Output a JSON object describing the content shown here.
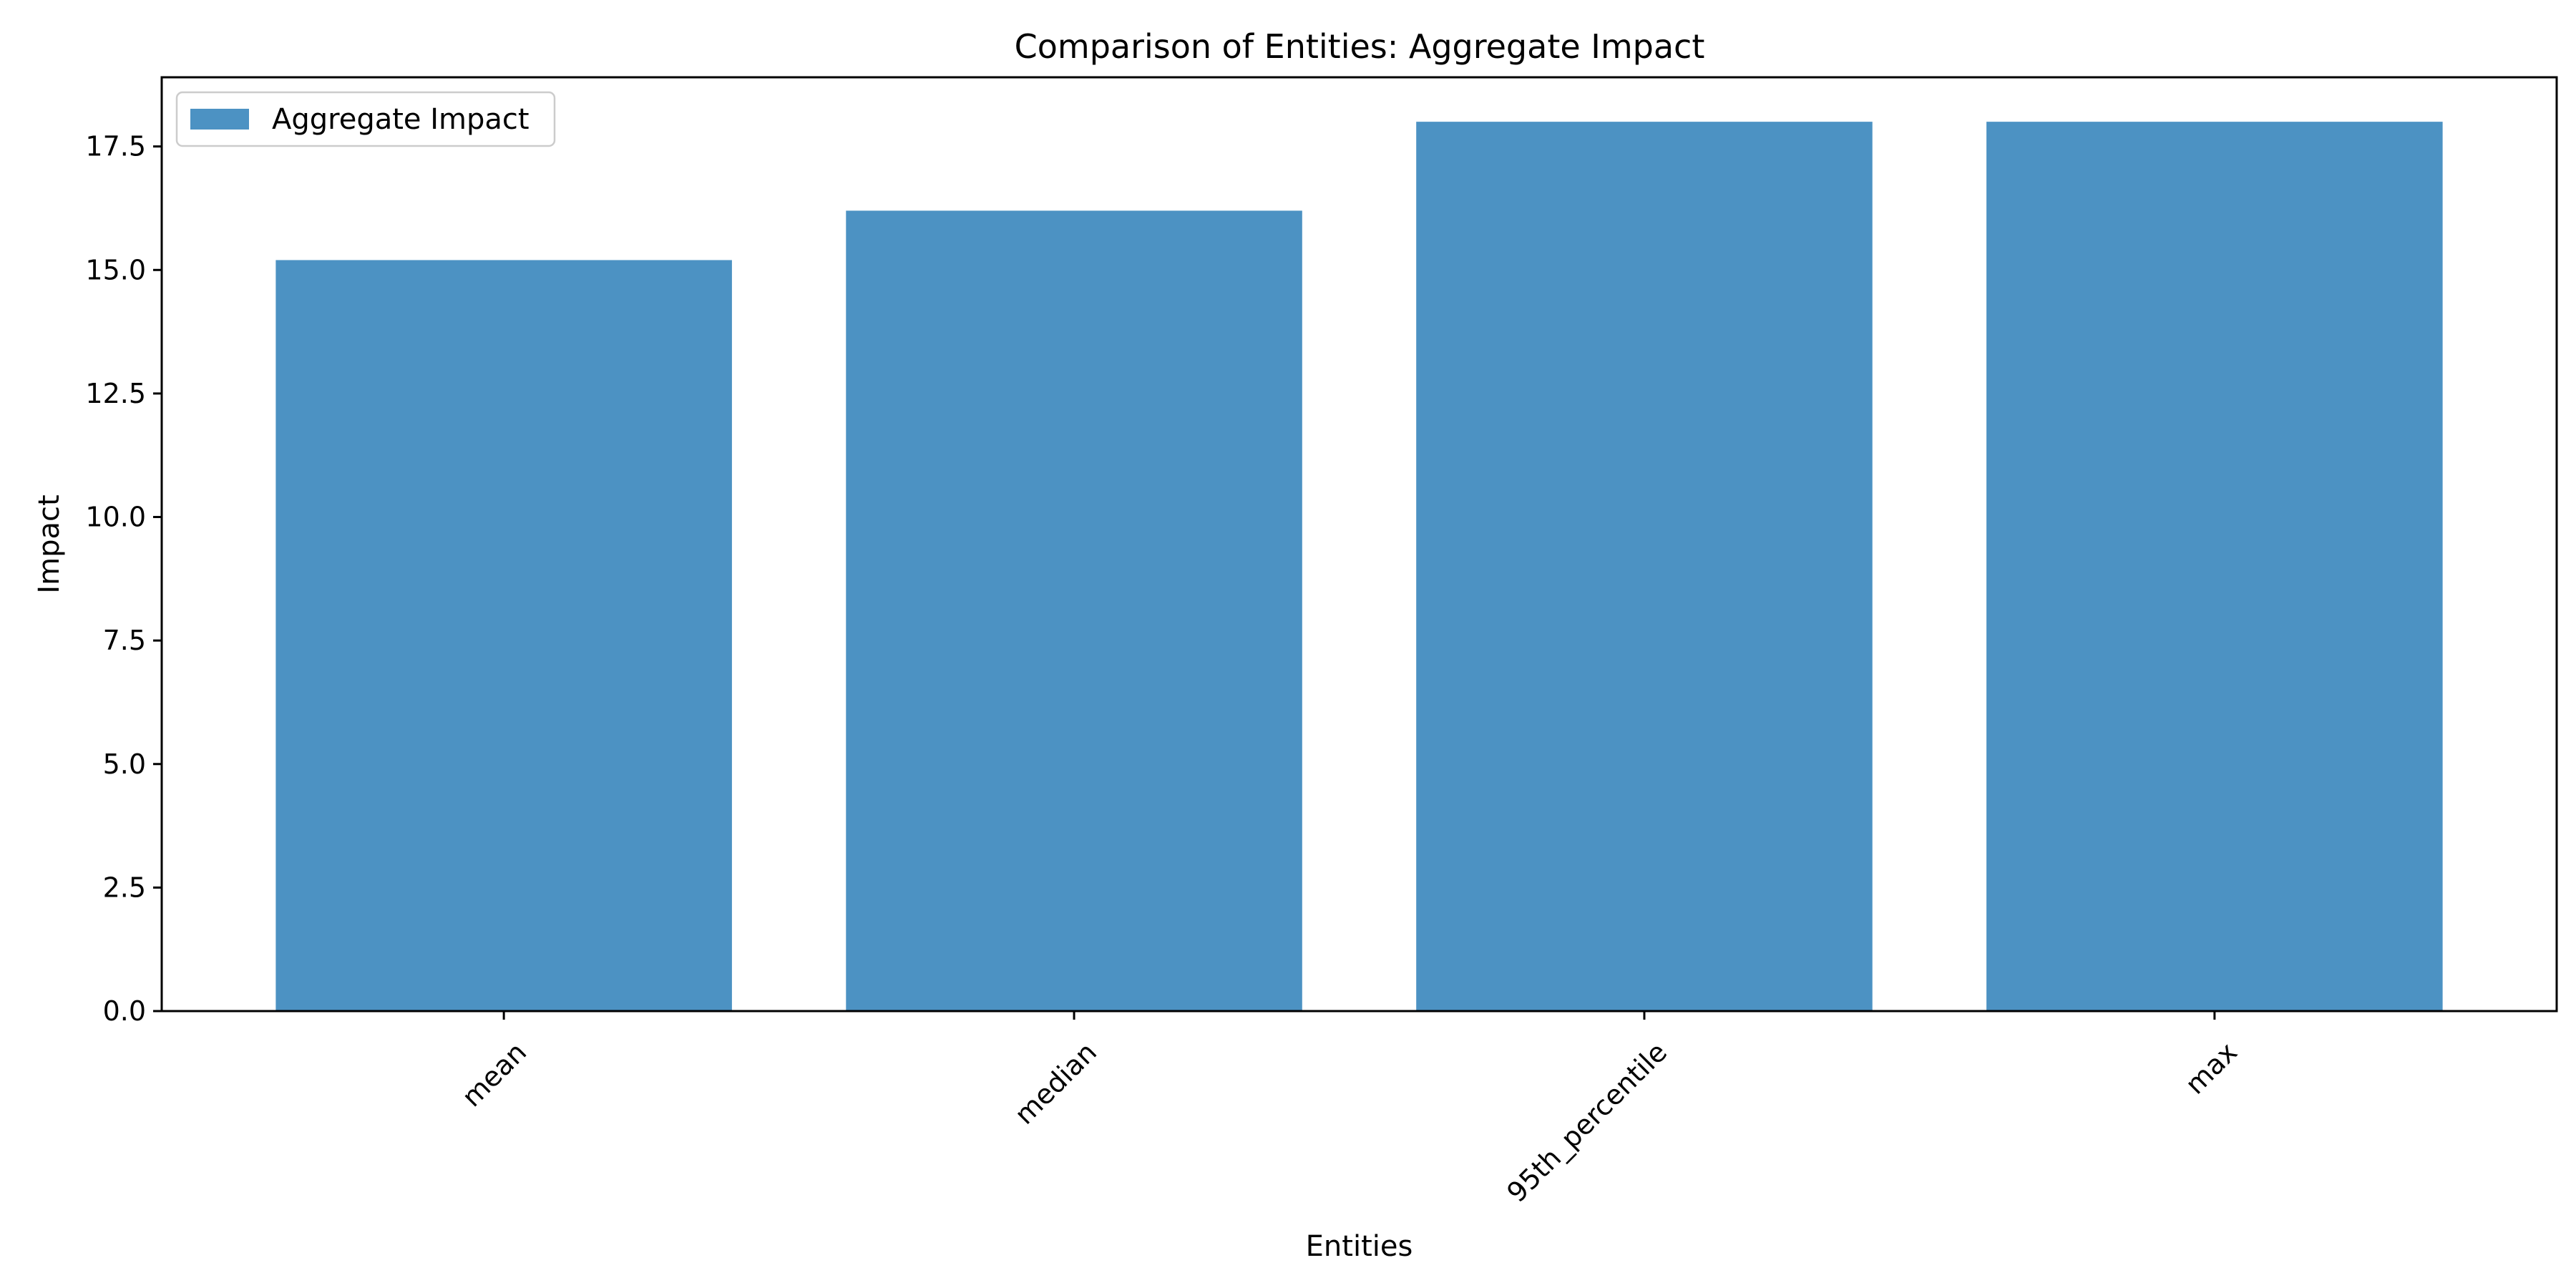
{
  "chart_data": {
    "type": "bar",
    "title": "Comparison of Entities: Aggregate Impact",
    "xlabel": "Entities",
    "ylabel": "Impact",
    "categories": [
      "mean",
      "median",
      "95th_percentile",
      "max"
    ],
    "series": [
      {
        "name": "Aggregate Impact",
        "values": [
          15.2,
          16.2,
          18.0,
          18.0
        ],
        "color": "#4c92c3"
      }
    ],
    "ylim": [
      0,
      18.9
    ],
    "yticks": [
      "0.0",
      "2.5",
      "5.0",
      "7.5",
      "10.0",
      "12.5",
      "15.0",
      "17.5"
    ],
    "ytick_values": [
      0,
      2.5,
      5,
      7.5,
      10,
      12.5,
      15,
      17.5
    ],
    "grid": false,
    "legend_position": "upper-left",
    "xtick_rotation": "45 degrees"
  }
}
